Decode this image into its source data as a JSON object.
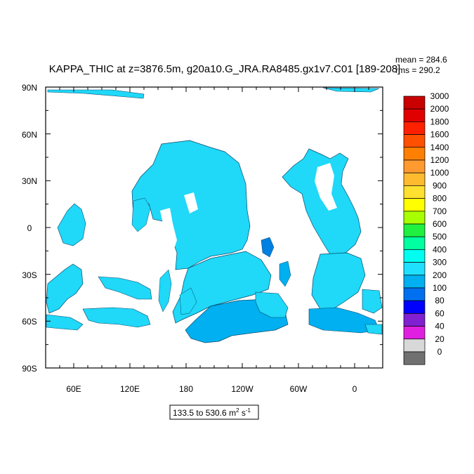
{
  "title": "KAPPA_THIC at z=3876.5m, g20a10.G_JRA.RA8485.gx1v7.C01 [189-208]",
  "stats": {
    "mean": "mean = 284.6",
    "rms": "rms = 290.2"
  },
  "range_label_main": "133.5 to 530.6 m",
  "range_label_sup1": "2",
  "range_label_mid": " s",
  "range_label_sup2": "-1",
  "lat_labels": [
    "90N",
    "60N",
    "30N",
    "0",
    "30S",
    "60S",
    "90S"
  ],
  "lon_labels": [
    "60E",
    "120E",
    "180",
    "120W",
    "60W",
    "0"
  ],
  "colorbar": {
    "labels": [
      "3000",
      "2000",
      "1800",
      "1600",
      "1400",
      "1200",
      "1000",
      "900",
      "800",
      "700",
      "600",
      "500",
      "400",
      "300",
      "200",
      "100",
      "80",
      "60",
      "40",
      "20",
      "0"
    ],
    "colors": [
      "#c80000",
      "#e10000",
      "#ff2000",
      "#ff5000",
      "#ff8000",
      "#ff9a30",
      "#ffbb30",
      "#ffe030",
      "#ffff00",
      "#a8ff00",
      "#20f040",
      "#00ffa0",
      "#00fff0",
      "#20e0ff",
      "#00b0f0",
      "#0070f0",
      "#0000ff",
      "#8020d0",
      "#e020e0",
      "#d8d8d8",
      "#707070"
    ]
  },
  "map_colors": {
    "ocean_main": "#20d8f8",
    "ocean_deep": "#00b0f0",
    "ocean_dark": "#0080e0"
  }
}
